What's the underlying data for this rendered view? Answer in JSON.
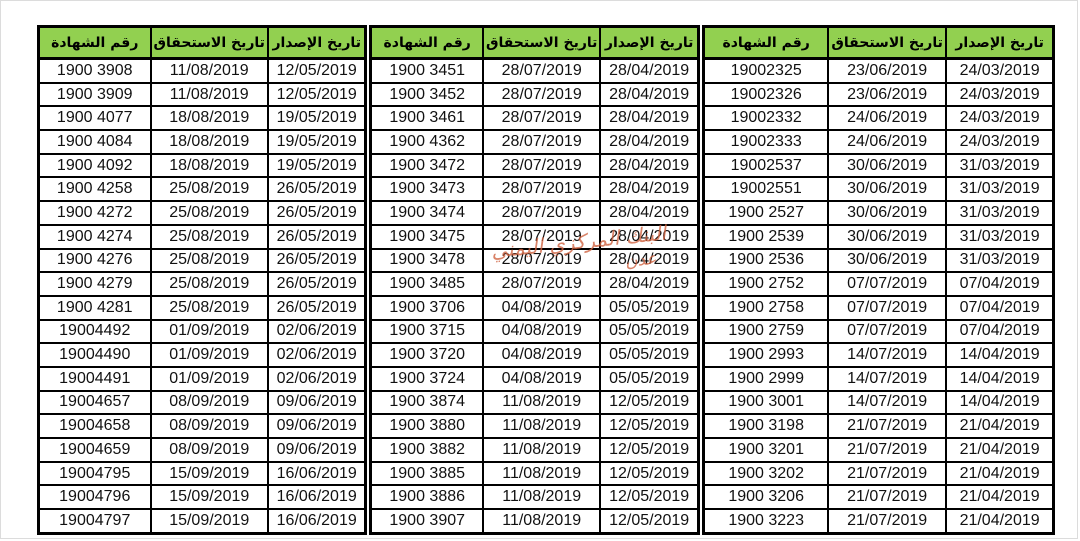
{
  "document": {
    "type": "scanned-certificate-schedule",
    "background_color": "#ffffff"
  },
  "table": {
    "header_background": "#92d050",
    "border_color": "#000000",
    "columns": [
      "رقم الشهادة",
      "تاريخ الاستحقاق",
      "تاريخ الإصدار"
    ],
    "column_keys": [
      "certificate-number",
      "maturity-date",
      "issue-date"
    ],
    "groups": [
      {
        "name": "left",
        "rows": [
          [
            "1900 3908",
            "11/08/2019",
            "12/05/2019"
          ],
          [
            "1900 3909",
            "11/08/2019",
            "12/05/2019"
          ],
          [
            "1900 4077",
            "18/08/2019",
            "19/05/2019"
          ],
          [
            "1900 4084",
            "18/08/2019",
            "19/05/2019"
          ],
          [
            "1900 4092",
            "18/08/2019",
            "19/05/2019"
          ],
          [
            "1900 4258",
            "25/08/2019",
            "26/05/2019"
          ],
          [
            "1900 4272",
            "25/08/2019",
            "26/05/2019"
          ],
          [
            "1900 4274",
            "25/08/2019",
            "26/05/2019"
          ],
          [
            "1900 4276",
            "25/08/2019",
            "26/05/2019"
          ],
          [
            "1900 4279",
            "25/08/2019",
            "26/05/2019"
          ],
          [
            "1900 4281",
            "25/08/2019",
            "26/05/2019"
          ],
          [
            "19004492",
            "01/09/2019",
            "02/06/2019"
          ],
          [
            "19004490",
            "01/09/2019",
            "02/06/2019"
          ],
          [
            "19004491",
            "01/09/2019",
            "02/06/2019"
          ],
          [
            "19004657",
            "08/09/2019",
            "09/06/2019"
          ],
          [
            "19004658",
            "08/09/2019",
            "09/06/2019"
          ],
          [
            "19004659",
            "08/09/2019",
            "09/06/2019"
          ],
          [
            "19004795",
            "15/09/2019",
            "16/06/2019"
          ],
          [
            "19004796",
            "15/09/2019",
            "16/06/2019"
          ],
          [
            "19004797",
            "15/09/2019",
            "16/06/2019"
          ]
        ]
      },
      {
        "name": "middle",
        "rows": [
          [
            "1900 3451",
            "28/07/2019",
            "28/04/2019"
          ],
          [
            "1900 3452",
            "28/07/2019",
            "28/04/2019"
          ],
          [
            "1900 3461",
            "28/07/2019",
            "28/04/2019"
          ],
          [
            "1900 4362",
            "28/07/2019",
            "28/04/2019"
          ],
          [
            "1900 3472",
            "28/07/2019",
            "28/04/2019"
          ],
          [
            "1900 3473",
            "28/07/2019",
            "28/04/2019"
          ],
          [
            "1900 3474",
            "28/07/2019",
            "28/04/2019"
          ],
          [
            "1900 3475",
            "28/07/2019",
            "28/04/2019"
          ],
          [
            "1900 3478",
            "28/07/2019",
            "28/04/2019"
          ],
          [
            "1900 3485",
            "28/07/2019",
            "28/04/2019"
          ],
          [
            "1900 3706",
            "04/08/2019",
            "05/05/2019"
          ],
          [
            "1900 3715",
            "04/08/2019",
            "05/05/2019"
          ],
          [
            "1900 3720",
            "04/08/2019",
            "05/05/2019"
          ],
          [
            "1900 3724",
            "04/08/2019",
            "05/05/2019"
          ],
          [
            "1900 3874",
            "11/08/2019",
            "12/05/2019"
          ],
          [
            "1900 3880",
            "11/08/2019",
            "12/05/2019"
          ],
          [
            "1900 3882",
            "11/08/2019",
            "12/05/2019"
          ],
          [
            "1900 3885",
            "11/08/2019",
            "12/05/2019"
          ],
          [
            "1900 3886",
            "11/08/2019",
            "12/05/2019"
          ],
          [
            "1900 3907",
            "11/08/2019",
            "12/05/2019"
          ]
        ]
      },
      {
        "name": "right",
        "rows": [
          [
            "19002325",
            "23/06/2019",
            "24/03/2019"
          ],
          [
            "19002326",
            "23/06/2019",
            "24/03/2019"
          ],
          [
            "19002332",
            "24/06/2019",
            "24/03/2019"
          ],
          [
            "19002333",
            "24/06/2019",
            "24/03/2019"
          ],
          [
            "19002537",
            "30/06/2019",
            "31/03/2019"
          ],
          [
            "19002551",
            "30/06/2019",
            "31/03/2019"
          ],
          [
            "1900 2527",
            "30/06/2019",
            "31/03/2019"
          ],
          [
            "1900 2539",
            "30/06/2019",
            "31/03/2019"
          ],
          [
            "1900 2536",
            "30/06/2019",
            "31/03/2019"
          ],
          [
            "1900 2752",
            "07/07/2019",
            "07/04/2019"
          ],
          [
            "1900 2758",
            "07/07/2019",
            "07/04/2019"
          ],
          [
            "1900 2759",
            "07/07/2019",
            "07/04/2019"
          ],
          [
            "1900 2993",
            "14/07/2019",
            "14/04/2019"
          ],
          [
            "1900 2999",
            "14/07/2019",
            "14/04/2019"
          ],
          [
            "1900 3001",
            "14/07/2019",
            "14/04/2019"
          ],
          [
            "1900 3198",
            "21/07/2019",
            "21/04/2019"
          ],
          [
            "1900 3201",
            "21/07/2019",
            "21/04/2019"
          ],
          [
            "1900 3202",
            "21/07/2019",
            "21/04/2019"
          ],
          [
            "1900 3206",
            "21/07/2019",
            "21/04/2019"
          ],
          [
            "1900 3223",
            "21/07/2019",
            "21/04/2019"
          ]
        ]
      }
    ]
  },
  "watermark": {
    "line1": "البنك المركزي اليمني",
    "line2": "عدن",
    "color": "#ce603e"
  }
}
